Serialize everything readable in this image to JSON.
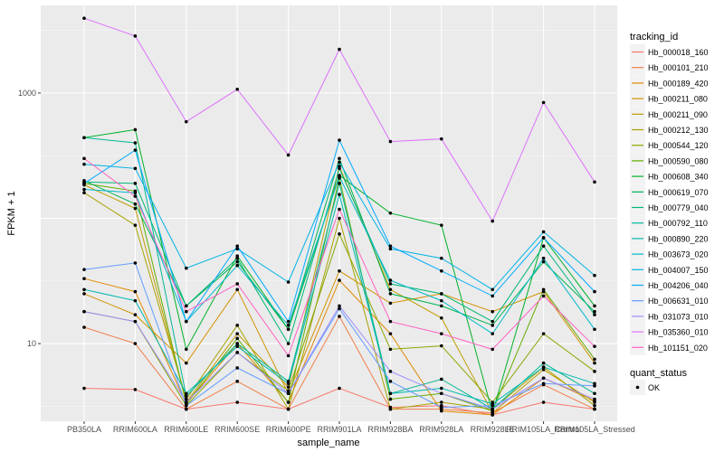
{
  "chart_data": {
    "type": "line",
    "xlabel": "sample_name",
    "ylabel": "FPKM + 1",
    "yscale": "log10",
    "ylim": [
      2.4,
      5000
    ],
    "yticks": [
      {
        "value": 10,
        "label": "10"
      },
      {
        "value": 1000,
        "label": "1000"
      }
    ],
    "grid": true,
    "categories": [
      "PB350LA",
      "RRIM600LA",
      "RRIM600LE",
      "RRIM600SE",
      "RRIM600PE",
      "RRIM901LA",
      "RRIM928BA",
      "RRIM928LA",
      "RRIM928LE",
      "RRIM105LA_Control",
      "RRIM105LA_Stressed"
    ],
    "legend": {
      "position": "right",
      "title": "tracking_id",
      "shape_title": "quant_status",
      "shape_items": [
        "OK"
      ]
    },
    "series": [
      {
        "name": "Hb_000018_160",
        "color": "#F8766D",
        "values": [
          4.4,
          4.3,
          3.0,
          3.4,
          3.0,
          4.4,
          3.1,
          3.2,
          2.7,
          3.4,
          3.0
        ]
      },
      {
        "name": "Hb_000101_210",
        "color": "#EF7F49",
        "values": [
          13.5,
          10.0,
          3.0,
          5.0,
          3.0,
          16.5,
          3.0,
          3.0,
          2.8,
          4.7,
          3.0
        ]
      },
      {
        "name": "Hb_000189_420",
        "color": "#E38900",
        "values": [
          33.0,
          26.0,
          3.3,
          10.0,
          3.4,
          32.0,
          12.0,
          2.9,
          2.7,
          5.3,
          3.5
        ]
      },
      {
        "name": "Hb_000211_080",
        "color": "#D39200",
        "values": [
          25.0,
          17.0,
          7.0,
          27.0,
          4.0,
          38.0,
          21.0,
          25.0,
          18.0,
          26.0,
          7.0
        ]
      },
      {
        "name": "Hb_000211_090",
        "color": "#C09B00",
        "values": [
          185.0,
          120.0,
          3.4,
          12.0,
          4.5,
          260.0,
          27.0,
          16.0,
          2.8,
          6.2,
          3.4
        ]
      },
      {
        "name": "Hb_000212_130",
        "color": "#A8A200",
        "values": [
          160.0,
          88.0,
          3.6,
          14.0,
          3.0,
          100.0,
          3.0,
          3.4,
          3.0,
          6.5,
          3.2
        ]
      },
      {
        "name": "Hb_000544_120",
        "color": "#8BA800",
        "values": [
          18.0,
          15.0,
          3.2,
          8.5,
          4.2,
          75.0,
          9.0,
          9.6,
          3.4,
          12.0,
          6.0
        ]
      },
      {
        "name": "Hb_000590_080",
        "color": "#64AD00",
        "values": [
          190.0,
          165.0,
          3.3,
          11.0,
          3.4,
          210.0,
          3.6,
          4.0,
          2.9,
          27.0,
          7.5
        ]
      },
      {
        "name": "Hb_000608_340",
        "color": "#00B12A",
        "values": [
          440.0,
          510.0,
          9.0,
          50.0,
          13.0,
          220.0,
          110.0,
          88.0,
          2.8,
          70.0,
          20.0
        ]
      },
      {
        "name": "Hb_000619_070",
        "color": "#00B454",
        "values": [
          200.0,
          130.0,
          20.0,
          45.0,
          13.0,
          300.0,
          25.0,
          20.0,
          14.0,
          45.0,
          18.0
        ]
      },
      {
        "name": "Hb_000779_040",
        "color": "#00B776",
        "values": [
          195.0,
          190.0,
          20.0,
          48.0,
          10.0,
          250.0,
          30.0,
          25.0,
          15.0,
          60.0,
          17.0
        ]
      },
      {
        "name": "Hb_000792_110",
        "color": "#00B895",
        "values": [
          440.0,
          400.0,
          3.8,
          10.0,
          5.0,
          190.0,
          4.0,
          5.2,
          3.0,
          7.0,
          4.0
        ]
      },
      {
        "name": "Hb_000890_220",
        "color": "#00BAB1",
        "values": [
          27.0,
          22.0,
          4.0,
          9.5,
          4.8,
          155.0,
          4.0,
          4.4,
          3.3,
          6.5,
          4.8
        ]
      },
      {
        "name": "Hb_003673_020",
        "color": "#00B9CB",
        "values": [
          170.0,
          160.0,
          15.0,
          42.0,
          14.0,
          215.0,
          32.0,
          22.0,
          12.0,
          48.0,
          13.0
        ]
      },
      {
        "name": "Hb_004007_150",
        "color": "#00B4E4",
        "values": [
          270.0,
          250.0,
          40.0,
          57.0,
          31.0,
          280.0,
          57.0,
          48.0,
          27.0,
          78.0,
          35.0
        ]
      },
      {
        "name": "Hb_004206_040",
        "color": "#00ABFD",
        "values": [
          190.0,
          350.0,
          15.0,
          60.0,
          15.0,
          420.0,
          60.0,
          38.0,
          24.0,
          70.0,
          26.0
        ]
      },
      {
        "name": "Hb_006631_010",
        "color": "#619CFF",
        "values": [
          39.0,
          44.0,
          3.2,
          6.4,
          4.0,
          19.0,
          5.0,
          3.1,
          3.2,
          4.8,
          4.6
        ]
      },
      {
        "name": "Hb_031073_010",
        "color": "#9C8DFF",
        "values": [
          18.0,
          15.0,
          3.4,
          8.5,
          4.0,
          20.0,
          6.0,
          4.0,
          3.0,
          5.3,
          3.6
        ]
      },
      {
        "name": "Hb_035360_010",
        "color": "#DC71FA",
        "values": [
          3950.0,
          2850.0,
          590.0,
          1070.0,
          320.0,
          2230.0,
          410.0,
          430.0,
          95.0,
          840.0,
          195.0
        ]
      },
      {
        "name": "Hb_101151_020",
        "color": "#FF61C3",
        "values": [
          300.0,
          150.0,
          18.0,
          30.0,
          8.0,
          118.0,
          15.0,
          12.0,
          9.0,
          24.0,
          9.5
        ]
      }
    ]
  }
}
